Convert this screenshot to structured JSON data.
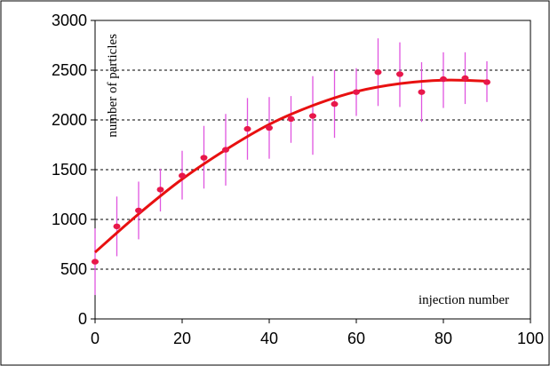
{
  "chart_data": {
    "type": "scatter",
    "title": "",
    "xlabel": "injection number",
    "ylabel": "number of particles",
    "xlim": [
      0,
      100
    ],
    "ylim": [
      0,
      3000
    ],
    "x_ticks": [
      0,
      20,
      40,
      60,
      80,
      100
    ],
    "y_ticks": [
      0,
      500,
      1000,
      1500,
      2000,
      2500,
      3000
    ],
    "x_tick_labels": [
      "0",
      "20",
      "40",
      "60",
      "80",
      "100"
    ],
    "y_tick_labels": [
      "0",
      "500",
      "1000",
      "1500",
      "2000",
      "2500",
      "3000"
    ],
    "grid": "horizontal dashed",
    "legend": "none",
    "series": [
      {
        "kind": "points-with-error-bars",
        "color": "#e8174a",
        "error_bar_color": "#e055e0",
        "points": [
          {
            "x": 0,
            "y": 575,
            "lo": 240,
            "hi": 910
          },
          {
            "x": 5,
            "y": 930,
            "lo": 630,
            "hi": 1230
          },
          {
            "x": 10,
            "y": 1090,
            "lo": 800,
            "hi": 1380
          },
          {
            "x": 15,
            "y": 1300,
            "lo": 1080,
            "hi": 1510
          },
          {
            "x": 20,
            "y": 1440,
            "lo": 1200,
            "hi": 1690
          },
          {
            "x": 25,
            "y": 1620,
            "lo": 1310,
            "hi": 1940
          },
          {
            "x": 30,
            "y": 1700,
            "lo": 1340,
            "hi": 2060
          },
          {
            "x": 35,
            "y": 1910,
            "lo": 1600,
            "hi": 2220
          },
          {
            "x": 40,
            "y": 1920,
            "lo": 1610,
            "hi": 2230
          },
          {
            "x": 45,
            "y": 2010,
            "lo": 1770,
            "hi": 2240
          },
          {
            "x": 50,
            "y": 2040,
            "lo": 1650,
            "hi": 2440
          },
          {
            "x": 55,
            "y": 2160,
            "lo": 1820,
            "hi": 2500
          },
          {
            "x": 60,
            "y": 2280,
            "lo": 2040,
            "hi": 2520
          },
          {
            "x": 65,
            "y": 2480,
            "lo": 2140,
            "hi": 2820
          },
          {
            "x": 70,
            "y": 2460,
            "lo": 2130,
            "hi": 2780
          },
          {
            "x": 75,
            "y": 2280,
            "lo": 1980,
            "hi": 2580
          },
          {
            "x": 80,
            "y": 2410,
            "lo": 2120,
            "hi": 2680
          },
          {
            "x": 85,
            "y": 2420,
            "lo": 2160,
            "hi": 2680
          },
          {
            "x": 90,
            "y": 2380,
            "lo": 2180,
            "hi": 2590
          }
        ]
      },
      {
        "kind": "fit-curve",
        "color": "#e81010",
        "x_range": [
          0,
          90
        ],
        "points": [
          {
            "x": 0,
            "y": 670
          },
          {
            "x": 10,
            "y": 1055
          },
          {
            "x": 20,
            "y": 1405
          },
          {
            "x": 30,
            "y": 1700
          },
          {
            "x": 40,
            "y": 1955
          },
          {
            "x": 50,
            "y": 2145
          },
          {
            "x": 60,
            "y": 2285
          },
          {
            "x": 70,
            "y": 2365
          },
          {
            "x": 80,
            "y": 2400
          },
          {
            "x": 90,
            "y": 2390
          }
        ]
      }
    ]
  }
}
